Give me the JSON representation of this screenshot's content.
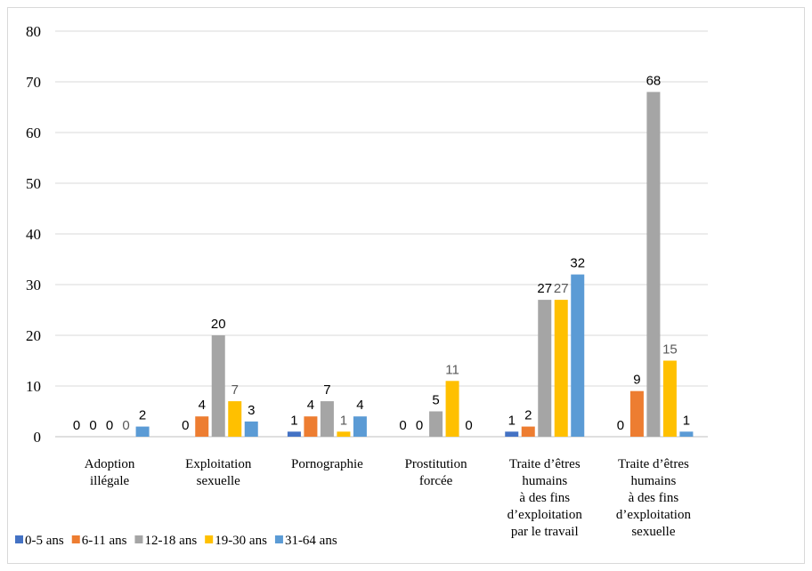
{
  "chart_data": {
    "type": "bar",
    "title": "",
    "xlabel": "",
    "ylabel": "",
    "ylim": [
      0,
      80
    ],
    "yticks": [
      0,
      10,
      20,
      30,
      40,
      50,
      60,
      70,
      80
    ],
    "grid": true,
    "legend_position": "bottom-left",
    "categories": [
      [
        "Adoption",
        "illégale"
      ],
      [
        "Exploitation",
        "sexuelle"
      ],
      [
        "Pornographie"
      ],
      [
        "Prostitution",
        "forcée"
      ],
      [
        "Traite d’êtres",
        "humains",
        "à des fins",
        "d’exploitation",
        "par le travail"
      ],
      [
        "Traite d’êtres",
        "humains",
        "à des fins",
        "d’exploitation",
        "sexuelle"
      ]
    ],
    "series": [
      {
        "name": "0-5 ans",
        "color": "#4472c4",
        "values": [
          0,
          0,
          1,
          0,
          1,
          0
        ]
      },
      {
        "name": "6-11 ans",
        "color": "#ed7d31",
        "values": [
          0,
          4,
          4,
          0,
          2,
          9
        ]
      },
      {
        "name": "12-18 ans",
        "color": "#a5a5a5",
        "values": [
          0,
          20,
          7,
          5,
          27,
          68
        ]
      },
      {
        "name": "19-30 ans",
        "color": "#ffc000",
        "values": [
          0,
          7,
          1,
          11,
          27,
          15
        ]
      },
      {
        "name": "31-64 ans",
        "color": "#5b9bd5",
        "values": [
          2,
          3,
          4,
          0,
          32,
          1
        ]
      }
    ]
  }
}
